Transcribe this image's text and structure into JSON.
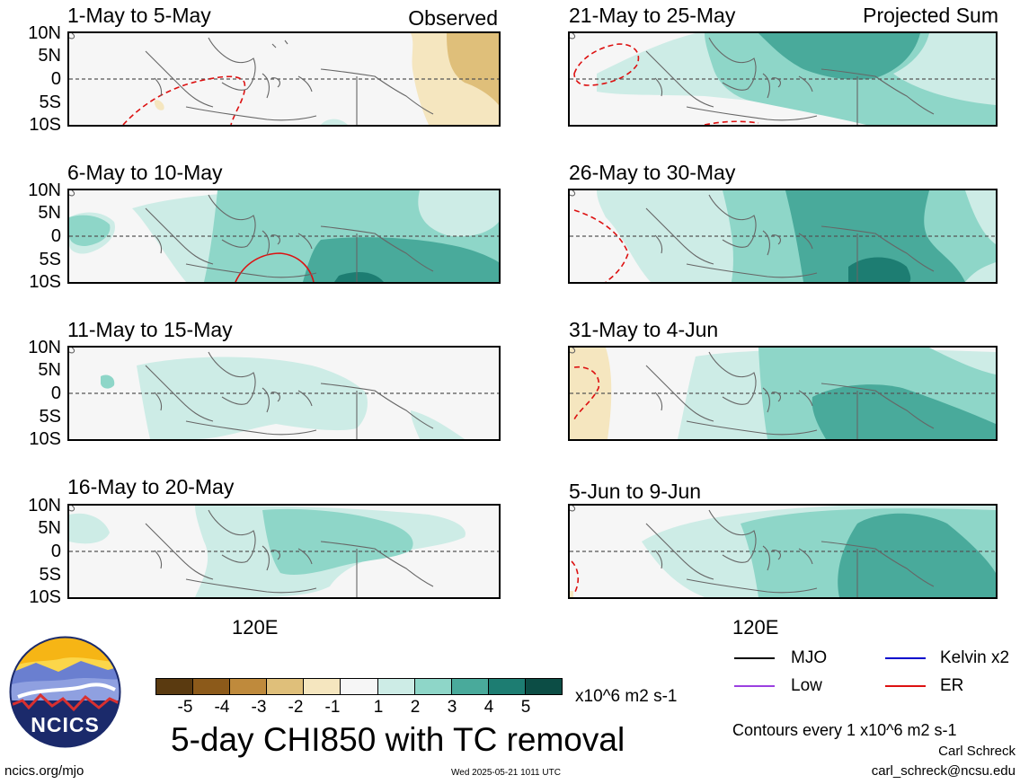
{
  "panels": [
    {
      "title": "1-May to 5-May",
      "tag": "Observed"
    },
    {
      "title": "6-May to 10-May",
      "tag": ""
    },
    {
      "title": "11-May to 15-May",
      "tag": ""
    },
    {
      "title": "16-May to 20-May",
      "tag": ""
    },
    {
      "title": "21-May to 25-May",
      "tag": "Projected Sum"
    },
    {
      "title": "26-May to 30-May",
      "tag": ""
    },
    {
      "title": "31-May to 4-Jun",
      "tag": ""
    },
    {
      "title": "5-Jun to 9-Jun",
      "tag": ""
    }
  ],
  "lat_labels": [
    "10N",
    "5N",
    "0",
    "5S",
    "10S"
  ],
  "lon_label": "120E",
  "colorbar": {
    "ticks": [
      "-5",
      "-4",
      "-3",
      "-2",
      "-1",
      "1",
      "2",
      "3",
      "4",
      "5"
    ],
    "colors": [
      "#5a3a10",
      "#8c5a1a",
      "#bf8a3c",
      "#dfbf7a",
      "#f5e6bf",
      "#f6f6f6",
      "#cdece6",
      "#8ed6c8",
      "#49aa9b",
      "#1d7d72",
      "#0c4d45"
    ],
    "units": "x10^6 m2 s-1"
  },
  "logo_text": "NCICS",
  "main_title": "5-day CHI850 with TC removal",
  "legend": [
    {
      "label": "MJO",
      "color": "#000000"
    },
    {
      "label": "Kelvin x2",
      "color": "#0000cc"
    },
    {
      "label": "Low",
      "color": "#9b40e0"
    },
    {
      "label": "ER",
      "color": "#dd1111"
    }
  ],
  "contours_note": "Contours every 1 x10^6 m2 s-1",
  "author": "Carl Schreck",
  "email": "carl_schreck@ncsu.edu",
  "website": "ncics.org/mjo",
  "timestamp": "Wed 2025-05-21 1011 UTC"
}
